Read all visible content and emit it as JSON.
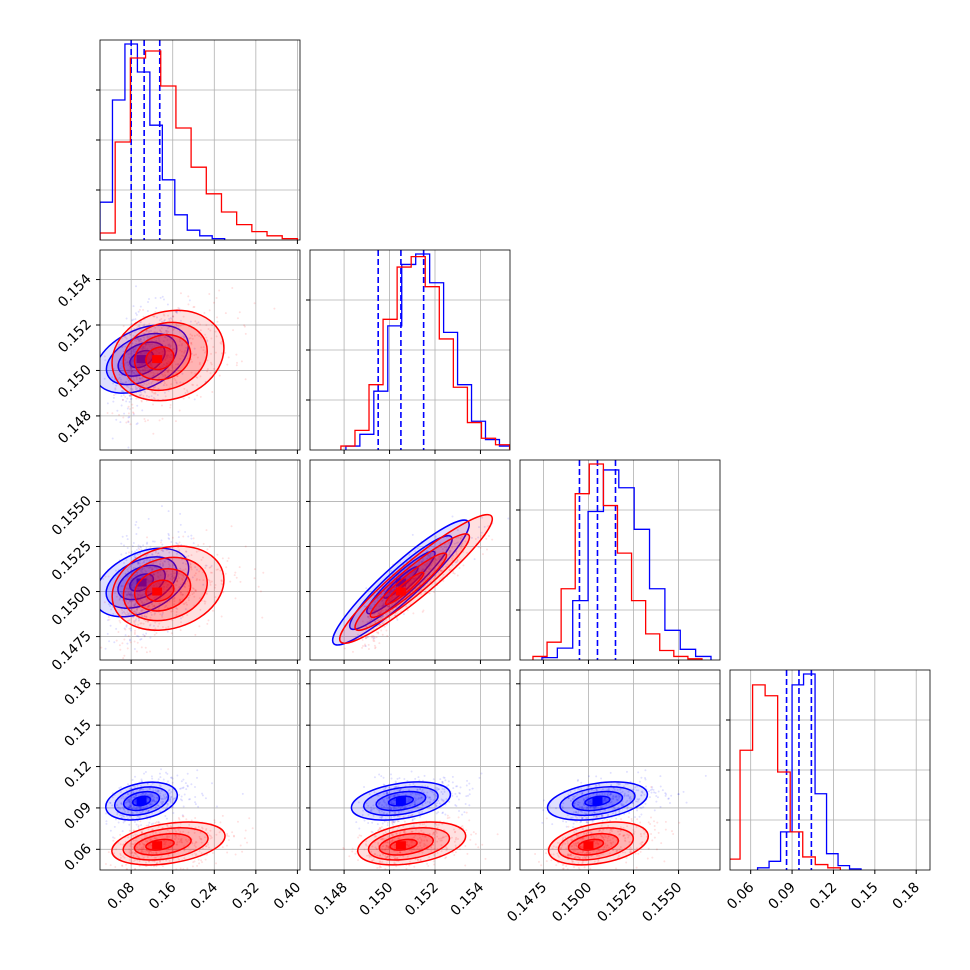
{
  "chart_data": {
    "type": "corner",
    "title": "",
    "colors": {
      "series_a": "#0000ff",
      "series_b": "#ff0000"
    },
    "grid": true,
    "series": [
      {
        "color": "#0000ff",
        "quantiles": [
          [
            0.08,
            0.105,
            0.135
          ],
          [
            0.1495,
            0.1505,
            0.1515
          ],
          [
            0.1495,
            0.1505,
            0.1515
          ],
          [
            0.086,
            0.095,
            0.104
          ]
        ],
        "centers": [
          [
            0.1,
            0.1505,
            0.1505,
            0.095
          ]
        ],
        "hist": [
          [
            2.7,
            10.0,
            14.0,
            12.0,
            8.2,
            4.3,
            1.8,
            0.7,
            0.3,
            0.1
          ],
          [
            0.3,
            1.2,
            4.5,
            9.5,
            14.2,
            15.0,
            12.8,
            9.0,
            5.0,
            2.2,
            0.8,
            0.3
          ],
          [
            0.2,
            1.0,
            5.0,
            12.5,
            16.0,
            14.5,
            11.0,
            6.0,
            2.5,
            0.9,
            0.3
          ],
          [
            0.2,
            0.8,
            3.5,
            17.0,
            18.0,
            7.0,
            1.5,
            0.4,
            0.1
          ]
        ]
      },
      {
        "color": "#ff0000",
        "quantiles": [],
        "centers": [
          [
            0.13,
            0.1505,
            0.15,
            0.063
          ]
        ],
        "hist": [
          [
            0.5,
            7.0,
            13.0,
            13.5,
            11.0,
            8.0,
            5.2,
            3.3,
            2.0,
            1.1,
            0.6,
            0.3,
            0.1
          ],
          [
            0.3,
            1.5,
            5.0,
            10.0,
            14.0,
            14.8,
            12.5,
            8.5,
            4.8,
            2.1,
            0.9,
            0.4,
            0.1
          ],
          [
            0.3,
            1.5,
            6.0,
            14.0,
            16.5,
            13.0,
            9.0,
            5.0,
            2.2,
            0.8,
            0.3,
            0.1
          ],
          [
            1.0,
            11.0,
            17.0,
            16.0,
            9.0,
            3.5,
            1.2,
            0.5,
            0.2
          ]
        ]
      }
    ],
    "parameters": [
      {
        "range": [
          0.02,
          0.405
        ],
        "ticks": [
          "0.08",
          "0.16",
          "0.24",
          "0.32",
          "0.40"
        ],
        "tick_values": [
          0.08,
          0.16,
          0.24,
          0.32,
          0.4
        ]
      },
      {
        "range": [
          0.1465,
          0.1553
        ],
        "ticks": [
          "0.148",
          "0.150",
          "0.152",
          "0.154"
        ],
        "tick_values": [
          0.148,
          0.15,
          0.152,
          0.154
        ]
      },
      {
        "range": [
          0.1462,
          0.1573
        ],
        "ticks": [
          "0.1475",
          "0.1500",
          "0.1525",
          "0.1550"
        ],
        "tick_values": [
          0.1475,
          0.15,
          0.1525,
          0.155
        ]
      },
      {
        "range": [
          0.045,
          0.19
        ],
        "ticks": [
          "0.06",
          "0.09",
          "0.12",
          "0.15",
          "0.18"
        ],
        "tick_values": [
          0.06,
          0.09,
          0.12,
          0.15,
          0.18
        ]
      }
    ]
  }
}
